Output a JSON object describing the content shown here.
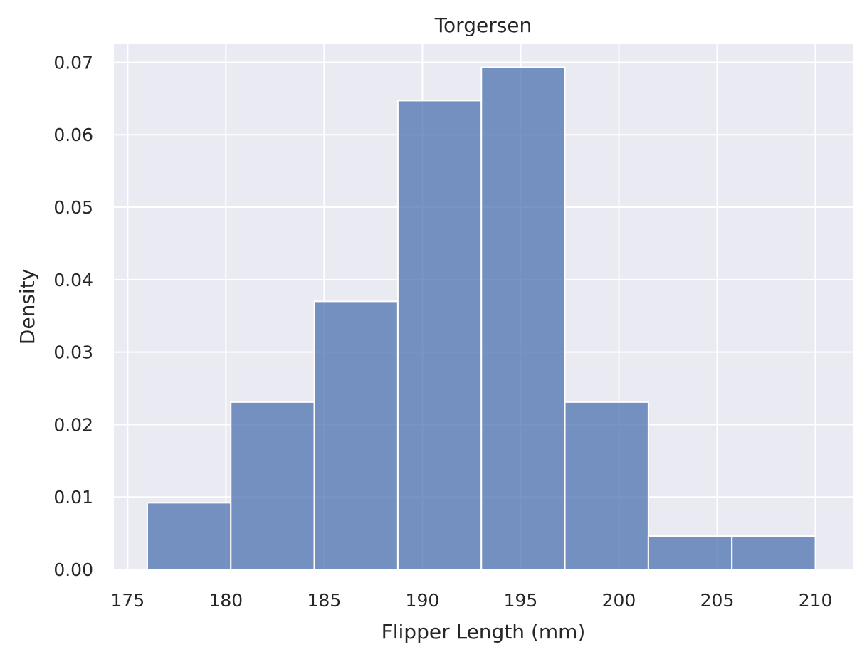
{
  "chart_data": {
    "type": "bar",
    "title": "Torgersen",
    "xlabel": "Flipper Length (mm)",
    "ylabel": "Density",
    "xlim": [
      174.3,
      211.9
    ],
    "ylim": [
      0,
      0.0725
    ],
    "xticks": [
      175,
      180,
      185,
      190,
      195,
      200,
      205,
      210
    ],
    "xtick_labels": [
      "175",
      "180",
      "185",
      "190",
      "195",
      "200",
      "205",
      "210"
    ],
    "yticks": [
      0,
      0.01,
      0.02,
      0.03,
      0.04,
      0.05,
      0.06,
      0.07
    ],
    "ytick_labels": [
      "0.00",
      "0.01",
      "0.02",
      "0.03",
      "0.04",
      "0.05",
      "0.06",
      "0.07"
    ],
    "bin_edges": [
      176,
      180.25,
      184.5,
      188.75,
      193,
      197.25,
      201.5,
      205.75,
      210
    ],
    "values": [
      0.0092,
      0.0231,
      0.037,
      0.0647,
      0.0693,
      0.0231,
      0.0046,
      0.0046
    ],
    "grid": true,
    "colors": {
      "background": "#eaeaf2",
      "bar_fill": "#4c72b0",
      "bar_edge": "#ffffff",
      "grid": "#ffffff"
    }
  }
}
